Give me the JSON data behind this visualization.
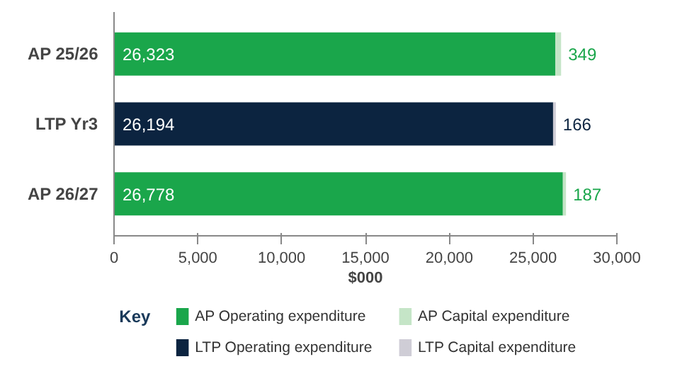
{
  "chart_data": {
    "type": "bar",
    "orientation": "horizontal",
    "stacked": true,
    "xlabel": "$000",
    "legend_title": "Key",
    "legend": "bottom",
    "grid": false,
    "categories": [
      "AP 25/26",
      "LTP Yr3",
      "AP 26/27"
    ],
    "xlim": [
      0,
      30000
    ],
    "xticks": [
      0,
      {
        "value": 5000,
        "label": "5,000"
      },
      {
        "value": 10000,
        "label": "10,000"
      },
      {
        "value": 15000,
        "label": "15,000"
      },
      {
        "value": 20000,
        "label": "20,000"
      },
      {
        "value": 25000,
        "label": "25,000"
      },
      {
        "value": 30000,
        "label": "30,000"
      }
    ],
    "series": [
      {
        "name": "AP Operating expenditure",
        "color": "#1aa64b",
        "values": [
          26323,
          null,
          26778
        ],
        "value_labels": [
          "26,323",
          null,
          "26,778"
        ]
      },
      {
        "name": "AP Capital expenditure",
        "color": "#c5e5c7",
        "values": [
          349,
          null,
          187
        ],
        "value_labels": [
          "349",
          null,
          "187"
        ]
      },
      {
        "name": "LTP Operating expenditure",
        "color": "#0c2440",
        "values": [
          null,
          26194,
          null
        ],
        "value_labels": [
          null,
          "26,194",
          null
        ]
      },
      {
        "name": "LTP Capital expenditure",
        "color": "#cfcdd6",
        "values": [
          null,
          166,
          null
        ],
        "value_labels": [
          null,
          "166",
          null
        ]
      }
    ]
  }
}
